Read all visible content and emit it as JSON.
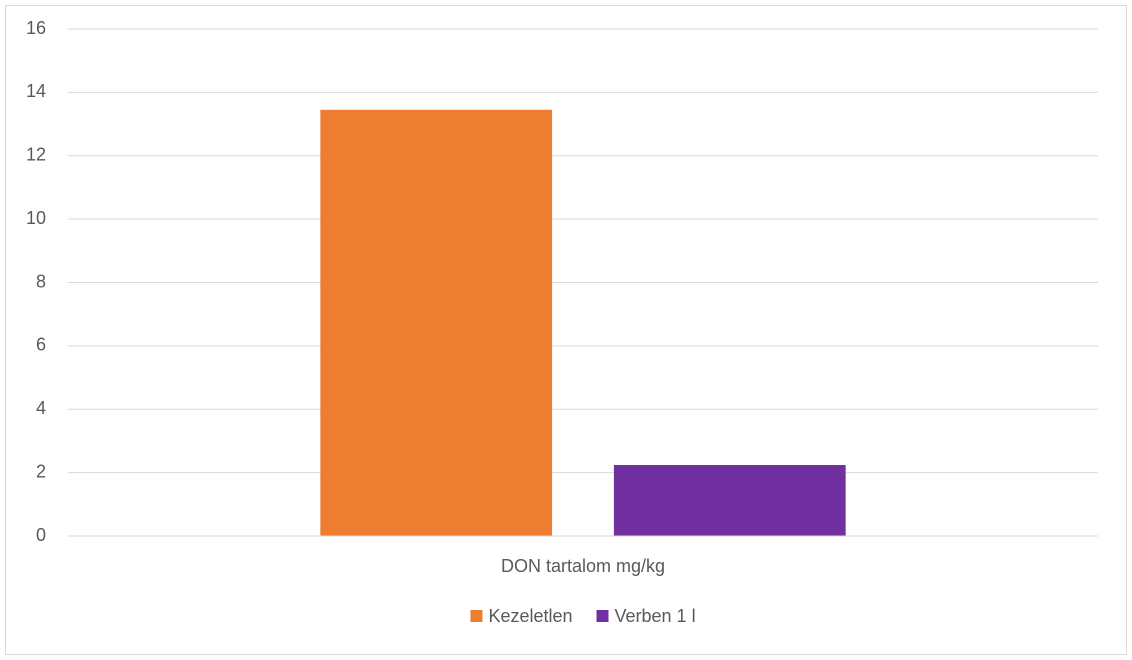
{
  "chart_data": {
    "type": "bar",
    "categories": [
      "DON tartalom mg/kg"
    ],
    "series": [
      {
        "name": "Kezeletlen",
        "color": "#ed7d31",
        "values": [
          13.45
        ]
      },
      {
        "name": "Verben 1 l",
        "color": "#7030a0",
        "values": [
          2.24
        ]
      }
    ],
    "ylim": [
      0,
      16
    ],
    "yticks": [
      0,
      2,
      4,
      6,
      8,
      10,
      12,
      14,
      16
    ],
    "grid": true,
    "legend": "bottom"
  }
}
